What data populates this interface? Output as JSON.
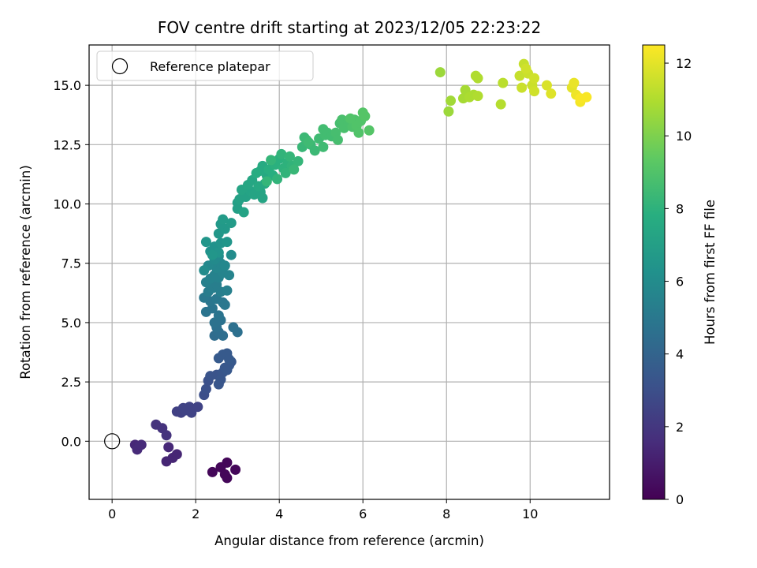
{
  "chart_data": {
    "type": "scatter",
    "title": "FOV centre drift starting at 2023/12/05 22:23:22",
    "xlabel": "Angular distance from reference (arcmin)",
    "ylabel": "Rotation from reference (arcmin)",
    "xlim": [
      -0.55,
      11.9
    ],
    "ylim": [
      -2.45,
      16.7
    ],
    "xticks": [
      0,
      2,
      4,
      6,
      8,
      10
    ],
    "yticks": [
      0.0,
      2.5,
      5.0,
      7.5,
      10.0,
      12.5,
      15.0
    ],
    "xtick_labels": [
      "0",
      "2",
      "4",
      "6",
      "8",
      "10"
    ],
    "ytick_labels": [
      "0.0",
      "2.5",
      "5.0",
      "7.5",
      "10.0",
      "12.5",
      "15.0"
    ],
    "grid": true,
    "legend": {
      "placement": "upper-left",
      "entries": [
        {
          "label": "Reference platepar",
          "marker": "open-circle",
          "x": 0,
          "y": 0
        }
      ]
    },
    "colorbar": {
      "label": "Hours from first FF file",
      "colormap": "viridis",
      "range": [
        0,
        12.5
      ],
      "ticks": [
        0,
        2,
        4,
        6,
        8,
        10,
        12
      ],
      "tick_labels": [
        "0",
        "2",
        "4",
        "6",
        "8",
        "10",
        "12"
      ]
    },
    "series": [
      {
        "points": [
          [
            2.4,
            -1.3,
            0.2
          ],
          [
            2.75,
            -0.9,
            0.2
          ],
          [
            2.6,
            -1.1,
            0.2
          ],
          [
            2.7,
            -1.4,
            0.2
          ],
          [
            2.75,
            -1.55,
            0.2
          ],
          [
            2.95,
            -1.2,
            0.2
          ],
          [
            1.3,
            -0.85,
            1.3
          ],
          [
            1.45,
            -0.7,
            1.3
          ],
          [
            1.55,
            -0.55,
            1.3
          ],
          [
            1.35,
            -0.25,
            1.4
          ],
          [
            0.55,
            -0.15,
            1.4
          ],
          [
            0.65,
            -0.2,
            1.5
          ],
          [
            0.6,
            -0.35,
            1.5
          ],
          [
            0.7,
            -0.15,
            1.5
          ],
          [
            1.05,
            0.7,
            1.8
          ],
          [
            1.2,
            0.55,
            1.8
          ],
          [
            1.3,
            0.25,
            1.8
          ],
          [
            1.55,
            1.25,
            2.4
          ],
          [
            1.65,
            1.2,
            2.4
          ],
          [
            1.75,
            1.3,
            2.5
          ],
          [
            1.85,
            1.45,
            2.5
          ],
          [
            1.9,
            1.2,
            2.5
          ],
          [
            2.05,
            1.45,
            2.5
          ],
          [
            1.7,
            1.4,
            2.5
          ],
          [
            2.2,
            1.95,
            3.0
          ],
          [
            2.25,
            2.2,
            3.1
          ],
          [
            2.3,
            2.55,
            3.1
          ],
          [
            2.35,
            2.75,
            3.2
          ],
          [
            2.5,
            2.8,
            3.2
          ],
          [
            2.55,
            2.4,
            3.3
          ],
          [
            2.6,
            2.6,
            3.3
          ],
          [
            2.65,
            2.9,
            3.3
          ],
          [
            2.75,
            3.0,
            3.4
          ],
          [
            2.8,
            3.2,
            3.4
          ],
          [
            2.85,
            3.35,
            3.4
          ],
          [
            2.7,
            3.1,
            3.4
          ],
          [
            2.55,
            3.5,
            3.5
          ],
          [
            2.65,
            3.65,
            3.5
          ],
          [
            2.75,
            3.7,
            3.5
          ],
          [
            2.8,
            3.45,
            3.5
          ],
          [
            2.45,
            4.45,
            4.4
          ],
          [
            2.55,
            4.6,
            4.5
          ],
          [
            2.65,
            4.45,
            4.5
          ],
          [
            2.5,
            4.8,
            4.6
          ],
          [
            2.9,
            4.8,
            4.6
          ],
          [
            3.0,
            4.6,
            4.6
          ],
          [
            2.45,
            5.0,
            4.7
          ],
          [
            2.6,
            5.1,
            4.7
          ],
          [
            2.25,
            5.45,
            4.8
          ],
          [
            2.4,
            5.6,
            4.8
          ],
          [
            2.55,
            5.3,
            4.8
          ],
          [
            2.65,
            5.85,
            4.9
          ],
          [
            2.35,
            5.9,
            4.9
          ],
          [
            2.5,
            6.0,
            5.0
          ],
          [
            2.2,
            6.05,
            5.0
          ],
          [
            2.7,
            5.75,
            5.0
          ],
          [
            2.3,
            6.3,
            5.2
          ],
          [
            2.4,
            6.45,
            5.3
          ],
          [
            2.5,
            6.6,
            5.3
          ],
          [
            2.6,
            6.3,
            5.3
          ],
          [
            2.75,
            6.35,
            5.4
          ],
          [
            2.25,
            6.7,
            5.4
          ],
          [
            2.35,
            6.85,
            5.5
          ],
          [
            2.45,
            7.0,
            5.5
          ],
          [
            2.55,
            6.9,
            5.5
          ],
          [
            2.65,
            7.1,
            5.6
          ],
          [
            2.8,
            7.0,
            5.6
          ],
          [
            2.5,
            7.3,
            5.7
          ],
          [
            2.6,
            7.5,
            5.7
          ],
          [
            2.7,
            7.4,
            5.8
          ],
          [
            2.3,
            7.4,
            5.8
          ],
          [
            2.45,
            7.65,
            5.9
          ],
          [
            2.55,
            7.8,
            5.9
          ],
          [
            2.85,
            7.85,
            6.0
          ],
          [
            2.2,
            7.2,
            6.0
          ],
          [
            2.35,
            8.0,
            6.3
          ],
          [
            2.45,
            8.2,
            6.3
          ],
          [
            2.55,
            7.95,
            6.4
          ],
          [
            2.6,
            8.35,
            6.4
          ],
          [
            2.75,
            8.4,
            6.5
          ],
          [
            2.25,
            8.4,
            6.5
          ],
          [
            2.4,
            7.85,
            6.5
          ],
          [
            2.55,
            8.75,
            6.6
          ],
          [
            2.7,
            8.95,
            6.7
          ],
          [
            2.6,
            9.15,
            6.7
          ],
          [
            2.85,
            9.2,
            6.8
          ],
          [
            2.65,
            9.35,
            6.8
          ],
          [
            3.0,
            9.8,
            7.0
          ],
          [
            3.0,
            10.05,
            7.0
          ],
          [
            3.05,
            10.2,
            7.1
          ],
          [
            3.2,
            10.3,
            7.1
          ],
          [
            3.3,
            10.55,
            7.2
          ],
          [
            3.15,
            9.65,
            7.2
          ],
          [
            3.4,
            10.4,
            7.3
          ],
          [
            3.55,
            10.5,
            7.3
          ],
          [
            3.6,
            10.25,
            7.3
          ],
          [
            3.1,
            10.6,
            7.3
          ],
          [
            3.25,
            10.8,
            7.4
          ],
          [
            3.35,
            11.0,
            7.4
          ],
          [
            3.5,
            10.75,
            7.5
          ],
          [
            3.65,
            10.85,
            7.5
          ],
          [
            3.7,
            11.2,
            7.5
          ],
          [
            3.55,
            11.4,
            7.6
          ],
          [
            3.6,
            11.6,
            7.6
          ],
          [
            3.45,
            11.3,
            7.7
          ],
          [
            3.75,
            11.45,
            7.8
          ],
          [
            3.85,
            11.2,
            7.8
          ],
          [
            3.9,
            11.65,
            7.9
          ],
          [
            4.0,
            11.9,
            7.9
          ],
          [
            4.1,
            11.5,
            8.0
          ],
          [
            4.2,
            11.75,
            8.0
          ],
          [
            4.3,
            11.6,
            8.1
          ],
          [
            4.05,
            12.1,
            8.1
          ],
          [
            3.95,
            11.05,
            8.1
          ],
          [
            4.15,
            11.3,
            8.1
          ],
          [
            3.8,
            11.85,
            8.2
          ],
          [
            4.25,
            12.0,
            8.2
          ],
          [
            4.45,
            11.8,
            8.2
          ],
          [
            3.7,
            10.95,
            8.2
          ],
          [
            4.35,
            11.45,
            8.3
          ],
          [
            4.55,
            12.4,
            8.3
          ],
          [
            4.65,
            12.7,
            8.4
          ],
          [
            4.75,
            12.5,
            8.4
          ],
          [
            4.85,
            12.25,
            8.4
          ],
          [
            4.6,
            12.8,
            8.4
          ],
          [
            4.7,
            12.6,
            8.5
          ],
          [
            4.95,
            12.75,
            8.5
          ],
          [
            5.05,
            12.4,
            8.5
          ],
          [
            5.1,
            12.9,
            8.6
          ],
          [
            5.05,
            13.15,
            8.6
          ],
          [
            5.15,
            13.0,
            8.6
          ],
          [
            5.25,
            12.85,
            8.6
          ],
          [
            5.35,
            13.0,
            8.7
          ],
          [
            5.4,
            12.7,
            8.7
          ],
          [
            5.45,
            13.4,
            8.7
          ],
          [
            5.55,
            13.2,
            8.8
          ],
          [
            5.5,
            13.55,
            8.8
          ],
          [
            5.65,
            13.45,
            8.8
          ],
          [
            5.75,
            13.25,
            8.9
          ],
          [
            5.8,
            13.55,
            8.9
          ],
          [
            5.85,
            13.3,
            9.0
          ],
          [
            5.9,
            13.0,
            9.0
          ],
          [
            5.95,
            13.5,
            9.0
          ],
          [
            6.05,
            13.7,
            9.1
          ],
          [
            6.15,
            13.1,
            9.1
          ],
          [
            6.0,
            13.85,
            9.1
          ],
          [
            5.7,
            13.6,
            9.0
          ],
          [
            7.85,
            15.55,
            10.6
          ],
          [
            8.05,
            13.9,
            10.6
          ],
          [
            8.1,
            14.35,
            10.7
          ],
          [
            8.4,
            14.45,
            10.8
          ],
          [
            8.45,
            14.8,
            10.8
          ],
          [
            8.55,
            14.5,
            10.9
          ],
          [
            8.65,
            14.6,
            10.9
          ],
          [
            8.75,
            14.55,
            11.0
          ],
          [
            8.7,
            15.4,
            11.0
          ],
          [
            8.75,
            15.3,
            11.0
          ],
          [
            9.3,
            14.2,
            11.1
          ],
          [
            9.35,
            15.1,
            11.2
          ],
          [
            9.75,
            15.4,
            11.4
          ],
          [
            9.85,
            15.9,
            11.4
          ],
          [
            9.8,
            14.9,
            11.5
          ],
          [
            9.95,
            15.5,
            11.5
          ],
          [
            10.05,
            15.0,
            11.5
          ],
          [
            10.1,
            15.3,
            11.6
          ],
          [
            10.1,
            14.75,
            11.6
          ],
          [
            9.9,
            15.7,
            11.6
          ],
          [
            10.4,
            15.0,
            11.8
          ],
          [
            10.5,
            14.65,
            11.9
          ],
          [
            11.0,
            14.9,
            12.0
          ],
          [
            11.05,
            15.1,
            12.1
          ],
          [
            11.1,
            14.6,
            12.2
          ],
          [
            11.2,
            14.3,
            12.3
          ],
          [
            11.35,
            14.5,
            12.4
          ],
          [
            11.2,
            14.45,
            12.4
          ]
        ]
      }
    ]
  }
}
